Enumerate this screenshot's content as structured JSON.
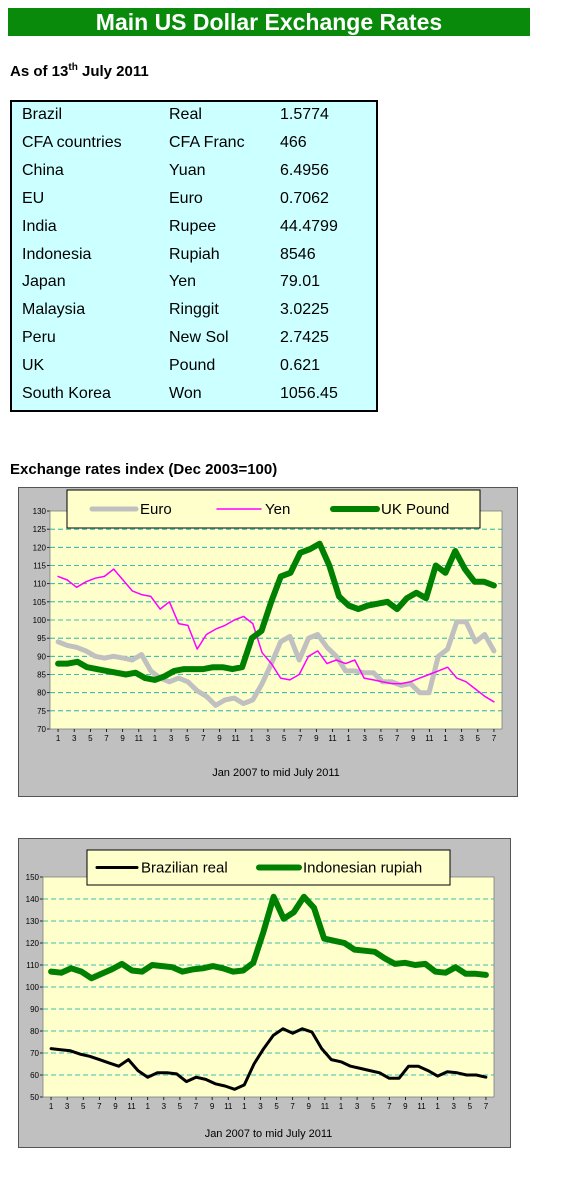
{
  "title": "Main US Dollar Exchange Rates",
  "as_of": {
    "prefix": "As of 13",
    "sup": "th",
    "suffix": " July 2011"
  },
  "rates": [
    {
      "country": "Brazil",
      "currency": "Real",
      "value": "1.5774"
    },
    {
      "country": "CFA countries",
      "currency": "CFA Franc",
      "value": "466"
    },
    {
      "country": "China",
      "currency": "Yuan",
      "value": "6.4956"
    },
    {
      "country": "EU",
      "currency": "Euro",
      "value": "0.7062"
    },
    {
      "country": "India",
      "currency": "Rupee",
      "value": "44.4799"
    },
    {
      "country": "Indonesia",
      "currency": "Rupiah",
      "value": "8546"
    },
    {
      "country": "Japan",
      "currency": "Yen",
      "value": "79.01"
    },
    {
      "country": "Malaysia",
      "currency": "Ringgit",
      "value": "3.0225"
    },
    {
      "country": "Peru",
      "currency": "New Sol",
      "value": "2.7425"
    },
    {
      "country": "UK",
      "currency": "Pound",
      "value": "0.621"
    },
    {
      "country": "South Korea",
      "currency": "Won",
      "value": "1056.45"
    }
  ],
  "index_title": "Exchange rates index (Dec 2003=100)",
  "colors": {
    "banner": "#0a8a0a",
    "table_bg": "#ccffff",
    "plot_bg": "#ffffcc",
    "euro": "#c0c0c0",
    "yen": "#ff00ff",
    "pound": "#008000",
    "real": "#000000",
    "rupiah": "#008000",
    "grid": "#00aaaa"
  },
  "chart_data": [
    {
      "type": "line",
      "xlabel": "Jan 2007 to mid July  2011",
      "x_tick_labels": [
        "1",
        "3",
        "5",
        "7",
        "9",
        "11",
        "1",
        "3",
        "5",
        "7",
        "9",
        "11",
        "1",
        "3",
        "5",
        "7",
        "9",
        "11",
        "1",
        "3",
        "5",
        "7",
        "9",
        "11",
        "1",
        "3",
        "5",
        "7"
      ],
      "ylim": [
        70,
        130
      ],
      "y_ticks": [
        70,
        75,
        80,
        85,
        90,
        95,
        100,
        105,
        110,
        115,
        120,
        125,
        130
      ],
      "grid": true,
      "legend_position": "top",
      "series": [
        {
          "name": "Euro",
          "color": "#c0c0c0",
          "values": [
            94,
            93,
            92.5,
            91.5,
            90,
            89.5,
            90,
            89.5,
            89,
            90.5,
            86,
            84,
            83,
            84,
            83,
            80.5,
            79,
            76.5,
            78,
            78.5,
            77,
            78,
            82.5,
            88,
            94,
            95.5,
            89,
            95,
            96,
            92.5,
            90,
            86,
            86,
            85.5,
            85.5,
            83,
            83,
            82,
            82.5,
            80,
            80,
            90,
            92,
            99.5,
            99.5,
            94,
            96,
            91.5
          ]
        },
        {
          "name": "Yen",
          "color": "#ff00ff",
          "values": [
            112,
            111,
            109,
            110.5,
            111.5,
            112,
            114,
            111,
            108,
            107,
            106.5,
            103,
            105,
            99,
            98.5,
            92,
            96,
            97.5,
            98.5,
            100,
            101,
            99,
            91,
            88,
            84,
            83.5,
            85,
            90,
            91.5,
            88,
            89,
            88,
            89,
            84,
            83.5,
            83,
            82.5,
            82.5,
            83,
            84,
            85,
            86,
            87,
            84,
            83,
            81,
            79,
            77.5
          ]
        },
        {
          "name": "UK Pound",
          "color": "#008000",
          "values": [
            88,
            88,
            88.5,
            87,
            86.5,
            86,
            85.5,
            85,
            85.5,
            84,
            83.5,
            84.5,
            86,
            86.5,
            86.5,
            86.5,
            87,
            87,
            86.5,
            87,
            95,
            97,
            105,
            112,
            113,
            118.5,
            119.5,
            121,
            115,
            106.5,
            104,
            103,
            104,
            104.5,
            105,
            103,
            106,
            107.5,
            106,
            115,
            113,
            119,
            114,
            110.5,
            110.5,
            109.5
          ]
        }
      ]
    },
    {
      "type": "line",
      "xlabel": "Jan 2007 to mid July 2011",
      "x_tick_labels": [
        "1",
        "3",
        "5",
        "7",
        "9",
        "11",
        "1",
        "3",
        "5",
        "7",
        "9",
        "11",
        "1",
        "3",
        "5",
        "7",
        "9",
        "11",
        "1",
        "3",
        "5",
        "7",
        "9",
        "11",
        "1",
        "3",
        "5",
        "7"
      ],
      "ylim": [
        50,
        150
      ],
      "y_ticks": [
        50,
        60,
        70,
        80,
        90,
        100,
        110,
        120,
        130,
        140,
        150
      ],
      "grid": true,
      "legend_position": "top",
      "series": [
        {
          "name": "Brazilian real",
          "color": "#000000",
          "values": [
            72,
            71.5,
            71,
            69.5,
            68.5,
            67,
            65.5,
            64,
            67,
            62,
            59,
            61,
            61,
            60.5,
            57,
            59,
            58,
            56,
            55,
            53.5,
            55.5,
            65,
            72,
            78,
            81,
            79,
            81,
            79.5,
            72,
            67,
            66,
            64,
            63,
            62,
            61,
            58.5,
            58.5,
            64,
            64,
            62,
            59.5,
            61.5,
            61,
            60,
            60,
            59
          ]
        },
        {
          "name": "Indonesian rupiah",
          "color": "#008000",
          "values": [
            107,
            106.5,
            108.5,
            107,
            104,
            106,
            108,
            110.5,
            107.5,
            107,
            110,
            109.5,
            109,
            107,
            108,
            108.5,
            109.5,
            108.5,
            107,
            107.5,
            111,
            125,
            141,
            131,
            134,
            141,
            136,
            122,
            121,
            120,
            117,
            116.5,
            116,
            113,
            110.5,
            111,
            110,
            110.5,
            107,
            106.5,
            109,
            106,
            106,
            105.5
          ]
        }
      ]
    }
  ]
}
